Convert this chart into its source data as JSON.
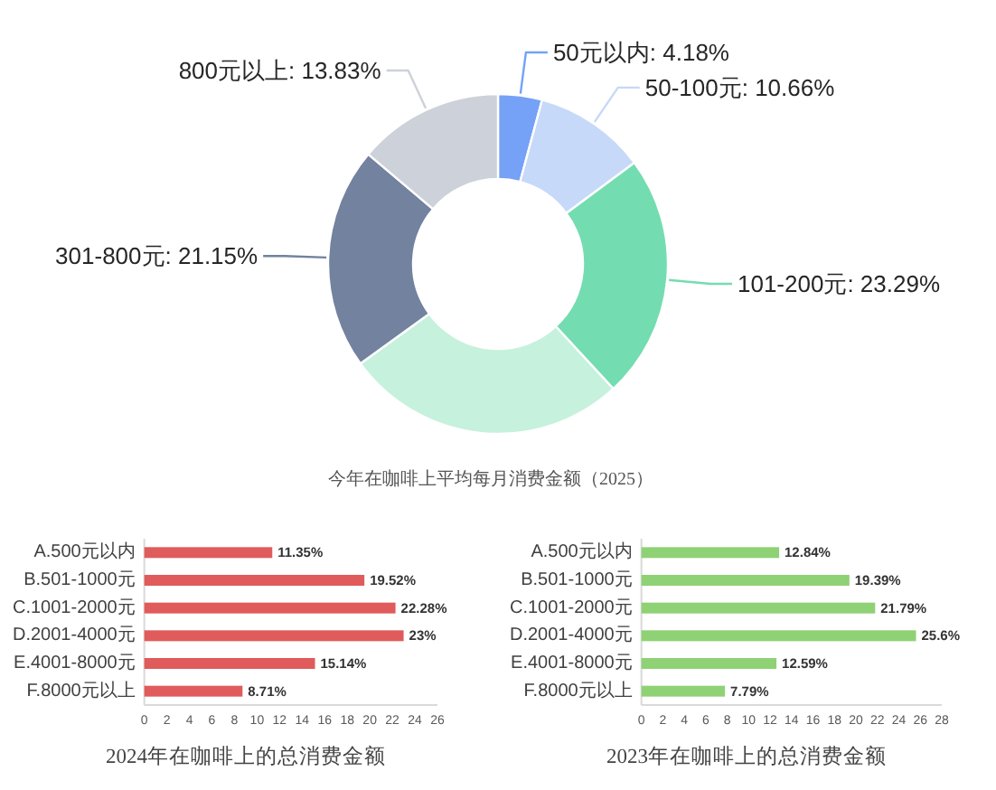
{
  "chart_data": [
    {
      "type": "donut",
      "title": "今年在咖啡上平均每月消费金额（2025）",
      "categories": [
        "50元以内",
        "50-100元",
        "101-200元",
        null,
        "301-800元",
        "800元以上"
      ],
      "values": [
        4.18,
        10.66,
        23.29,
        26.89,
        21.15,
        13.83
      ],
      "value_labels": [
        "4.18%",
        "10.66%",
        "23.29%",
        null,
        "21.15%",
        "13.83%"
      ],
      "colors": [
        "#75a2f7",
        "#c6d9f8",
        "#74dcb1",
        "#c6f1dd",
        "#72829f",
        "#cdd1d9"
      ]
    },
    {
      "type": "bar",
      "orientation": "horizontal",
      "title": "2024年在咖啡上的总消费金额",
      "categories": [
        "A.500元以内",
        "B.501-1000元",
        "C.1001-2000元",
        "D.2001-4000元",
        "E.4001-8000元",
        "F.8000元以上"
      ],
      "values": [
        11.35,
        19.52,
        22.28,
        23,
        15.14,
        8.71
      ],
      "value_labels": [
        "11.35%",
        "19.52%",
        "22.28%",
        "23%",
        "15.14%",
        "8.71%"
      ],
      "color": "#e05b5b",
      "xlim": [
        0,
        26
      ],
      "xticks": [
        0,
        2,
        4,
        6,
        8,
        10,
        12,
        14,
        16,
        18,
        20,
        22,
        24,
        26
      ]
    },
    {
      "type": "bar",
      "orientation": "horizontal",
      "title": "2023年在咖啡上的总消费金额",
      "categories": [
        "A.500元以内",
        "B.501-1000元",
        "C.1001-2000元",
        "D.2001-4000元",
        "E.4001-8000元",
        "F.8000元以上"
      ],
      "values": [
        12.84,
        19.39,
        21.79,
        25.6,
        12.59,
        7.79
      ],
      "value_labels": [
        "12.84%",
        "19.39%",
        "21.79%",
        "25.6%",
        "12.59%",
        "7.79%"
      ],
      "color": "#8fd175",
      "xlim": [
        0,
        28
      ],
      "xticks": [
        0,
        2,
        4,
        6,
        8,
        10,
        12,
        14,
        16,
        18,
        20,
        22,
        24,
        26,
        28
      ]
    }
  ]
}
